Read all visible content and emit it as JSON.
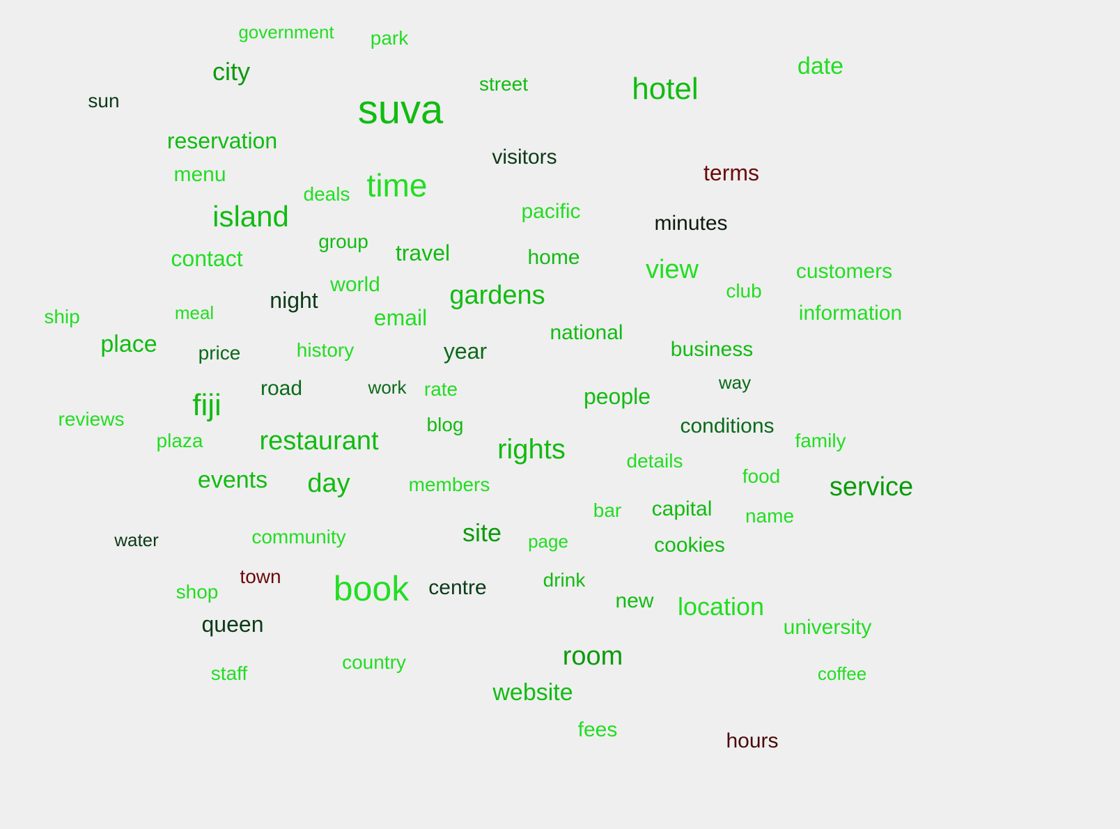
{
  "background": "#efefef",
  "palette": {
    "bright_green": "#22dd22",
    "green": "#11bb11",
    "mid_green": "#0b9a0b",
    "dark_green": "#0a6a1a",
    "very_dark_green": "#0c3a18",
    "near_black": "#0c1a0c",
    "dark_red": "#6b0a0a",
    "deep_red": "#4a0a0a"
  },
  "words": [
    {
      "text": "suva",
      "color": "#11bb11"
    },
    {
      "text": "book",
      "color": "#22dd22"
    },
    {
      "text": "hotel",
      "color": "#11bb11"
    },
    {
      "text": "time",
      "color": "#22dd22"
    },
    {
      "text": "island",
      "color": "#11bb11"
    },
    {
      "text": "fiji",
      "color": "#11bb11"
    },
    {
      "text": "gardens",
      "color": "#11bb11"
    },
    {
      "text": "restaurant",
      "color": "#11bb11"
    },
    {
      "text": "rights",
      "color": "#11bb11"
    },
    {
      "text": "service",
      "color": "#0b9a0b"
    },
    {
      "text": "room",
      "color": "#0b9a0b"
    },
    {
      "text": "day",
      "color": "#11bb11"
    },
    {
      "text": "view",
      "color": "#22dd22"
    },
    {
      "text": "city",
      "color": "#0b9a0b"
    },
    {
      "text": "site",
      "color": "#0b9a0b"
    },
    {
      "text": "location",
      "color": "#22dd22"
    },
    {
      "text": "events",
      "color": "#11bb11"
    },
    {
      "text": "website",
      "color": "#11bb11"
    },
    {
      "text": "place",
      "color": "#11bb11"
    },
    {
      "text": "date",
      "color": "#22dd22"
    },
    {
      "text": "terms",
      "color": "#6b0a0a"
    },
    {
      "text": "reservation",
      "color": "#11bb11"
    },
    {
      "text": "contact",
      "color": "#22dd22"
    },
    {
      "text": "travel",
      "color": "#11bb11"
    },
    {
      "text": "email",
      "color": "#22dd22"
    },
    {
      "text": "night",
      "color": "#0c3a18"
    },
    {
      "text": "year",
      "color": "#0a6a1a"
    },
    {
      "text": "people",
      "color": "#11bb11"
    },
    {
      "text": "queen",
      "color": "#0c3a18"
    },
    {
      "text": "menu",
      "color": "#22dd22"
    },
    {
      "text": "minutes",
      "color": "#0c1a0c"
    },
    {
      "text": "business",
      "color": "#11bb11"
    },
    {
      "text": "conditions",
      "color": "#0a6a1a"
    },
    {
      "text": "road",
      "color": "#0a6a1a"
    },
    {
      "text": "customers",
      "color": "#22dd22"
    },
    {
      "text": "information",
      "color": "#22dd22"
    },
    {
      "text": "visitors",
      "color": "#0c3a18"
    },
    {
      "text": "pacific",
      "color": "#22dd22"
    },
    {
      "text": "home",
      "color": "#11bb11"
    },
    {
      "text": "national",
      "color": "#11bb11"
    },
    {
      "text": "capital",
      "color": "#11bb11"
    },
    {
      "text": "centre",
      "color": "#0c3a18"
    },
    {
      "text": "members",
      "color": "#22dd22"
    },
    {
      "text": "community",
      "color": "#22dd22"
    },
    {
      "text": "hours",
      "color": "#4a0a0a"
    },
    {
      "text": "cookies",
      "color": "#11bb11"
    },
    {
      "text": "university",
      "color": "#22dd22"
    },
    {
      "text": "history",
      "color": "#22dd22"
    },
    {
      "text": "country",
      "color": "#22dd22"
    },
    {
      "text": "world",
      "color": "#22dd22"
    },
    {
      "text": "group",
      "color": "#11bb11"
    },
    {
      "text": "new",
      "color": "#11bb11"
    },
    {
      "text": "fees",
      "color": "#22dd22"
    },
    {
      "text": "plaza",
      "color": "#22dd22"
    },
    {
      "text": "reviews",
      "color": "#22dd22"
    },
    {
      "text": "family",
      "color": "#22dd22"
    },
    {
      "text": "food",
      "color": "#22dd22"
    },
    {
      "text": "details",
      "color": "#22dd22"
    },
    {
      "text": "name",
      "color": "#22dd22"
    },
    {
      "text": "blog",
      "color": "#11bb11"
    },
    {
      "text": "rate",
      "color": "#22dd22"
    },
    {
      "text": "street",
      "color": "#11bb11"
    },
    {
      "text": "government",
      "color": "#22dd22"
    },
    {
      "text": "park",
      "color": "#22dd22"
    },
    {
      "text": "deals",
      "color": "#22dd22"
    },
    {
      "text": "club",
      "color": "#22dd22"
    },
    {
      "text": "town",
      "color": "#6b0a0a"
    },
    {
      "text": "shop",
      "color": "#22dd22"
    },
    {
      "text": "drink",
      "color": "#11bb11"
    },
    {
      "text": "bar",
      "color": "#22dd22"
    },
    {
      "text": "page",
      "color": "#22dd22"
    },
    {
      "text": "way",
      "color": "#0a6a1a"
    },
    {
      "text": "work",
      "color": "#0a6a1a"
    },
    {
      "text": "price",
      "color": "#0a6a1a"
    },
    {
      "text": "meal",
      "color": "#22dd22"
    },
    {
      "text": "ship",
      "color": "#22dd22"
    },
    {
      "text": "sun",
      "color": "#0c3a18"
    },
    {
      "text": "water",
      "color": "#0c3a18"
    },
    {
      "text": "staff",
      "color": "#22dd22"
    },
    {
      "text": "coffee",
      "color": "#22dd22"
    }
  ]
}
